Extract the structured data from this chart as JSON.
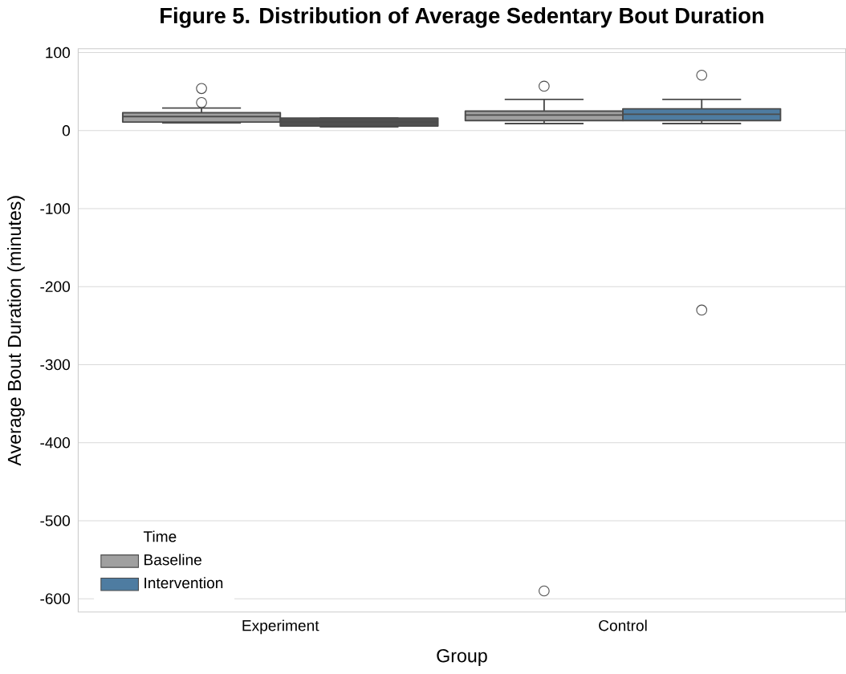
{
  "chart_data": {
    "type": "box",
    "title": "Figure 5. Distribution of Average Sedentary Bout Duration",
    "xlabel": "Group",
    "ylabel": "Average Bout Duration (minutes)",
    "legend_title": "Time",
    "categories": [
      "Experiment",
      "Control"
    ],
    "series": [
      {
        "name": "Baseline",
        "color": "#a0a0a0",
        "boxes": [
          {
            "low": 10,
            "q1": 11,
            "median": 18,
            "q3": 23,
            "high": 29,
            "outliers": [
              54,
              36
            ]
          },
          {
            "low": 9,
            "q1": 13,
            "median": 20,
            "q3": 25,
            "high": 40,
            "outliers": [
              57,
              -590
            ]
          }
        ]
      },
      {
        "name": "Intervention",
        "color": "#4e7ca1",
        "colors": [
          "#505050",
          "#4e7ca1"
        ],
        "boxes": [
          {
            "low": 5,
            "q1": 6,
            "median": 11,
            "q3": 16,
            "high": 16
          },
          {
            "low": 9,
            "q1": 13,
            "median": 21,
            "q3": 28,
            "high": 40,
            "outliers": [
              71,
              -230
            ]
          }
        ]
      }
    ],
    "ylim": [
      -617,
      105
    ],
    "yticks": [
      100,
      0,
      -100,
      -200,
      -300,
      -400,
      -500,
      -600
    ],
    "grid": "y",
    "legend": "bottom left"
  }
}
